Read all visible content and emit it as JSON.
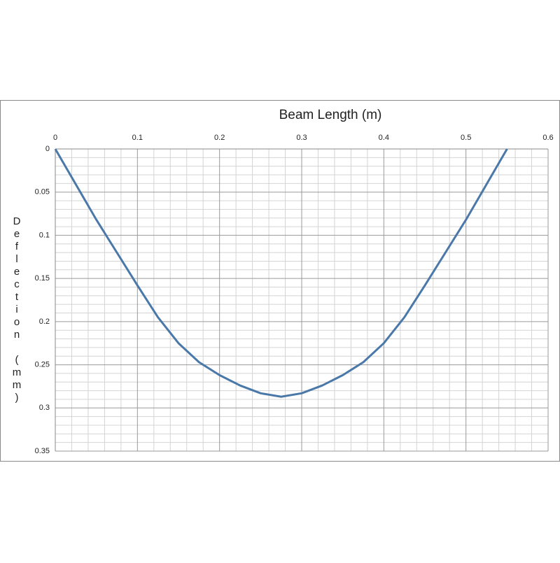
{
  "chart_data": {
    "type": "line",
    "x_label": "Beam Length (m)",
    "y_label": "Deflection (mm)",
    "x": [
      0,
      0.025,
      0.05,
      0.075,
      0.1,
      0.125,
      0.15,
      0.175,
      0.2,
      0.225,
      0.25,
      0.275,
      0.3,
      0.325,
      0.35,
      0.375,
      0.4,
      0.425,
      0.45,
      0.475,
      0.5,
      0.525,
      0.55
    ],
    "series": [
      {
        "color": "#4a78a8",
        "values": [
          0,
          0.041,
          0.082,
          0.12,
          0.158,
          0.195,
          0.225,
          0.247,
          0.262,
          0.274,
          0.283,
          0.287,
          0.283,
          0.274,
          0.262,
          0.247,
          0.225,
          0.195,
          0.158,
          0.12,
          0.082,
          0.041,
          0
        ]
      }
    ],
    "xlim": [
      0,
      0.6
    ],
    "xticks": [
      0,
      0.1,
      0.2,
      0.3,
      0.4,
      0.5,
      0.6
    ],
    "ylim": [
      0,
      0.35
    ],
    "yticks": [
      0,
      0.05,
      0.1,
      0.15,
      0.2,
      0.25,
      0.3,
      0.35
    ],
    "y_inverted": true,
    "x_axis_position": "top",
    "grid": true,
    "minor_grid": true
  }
}
